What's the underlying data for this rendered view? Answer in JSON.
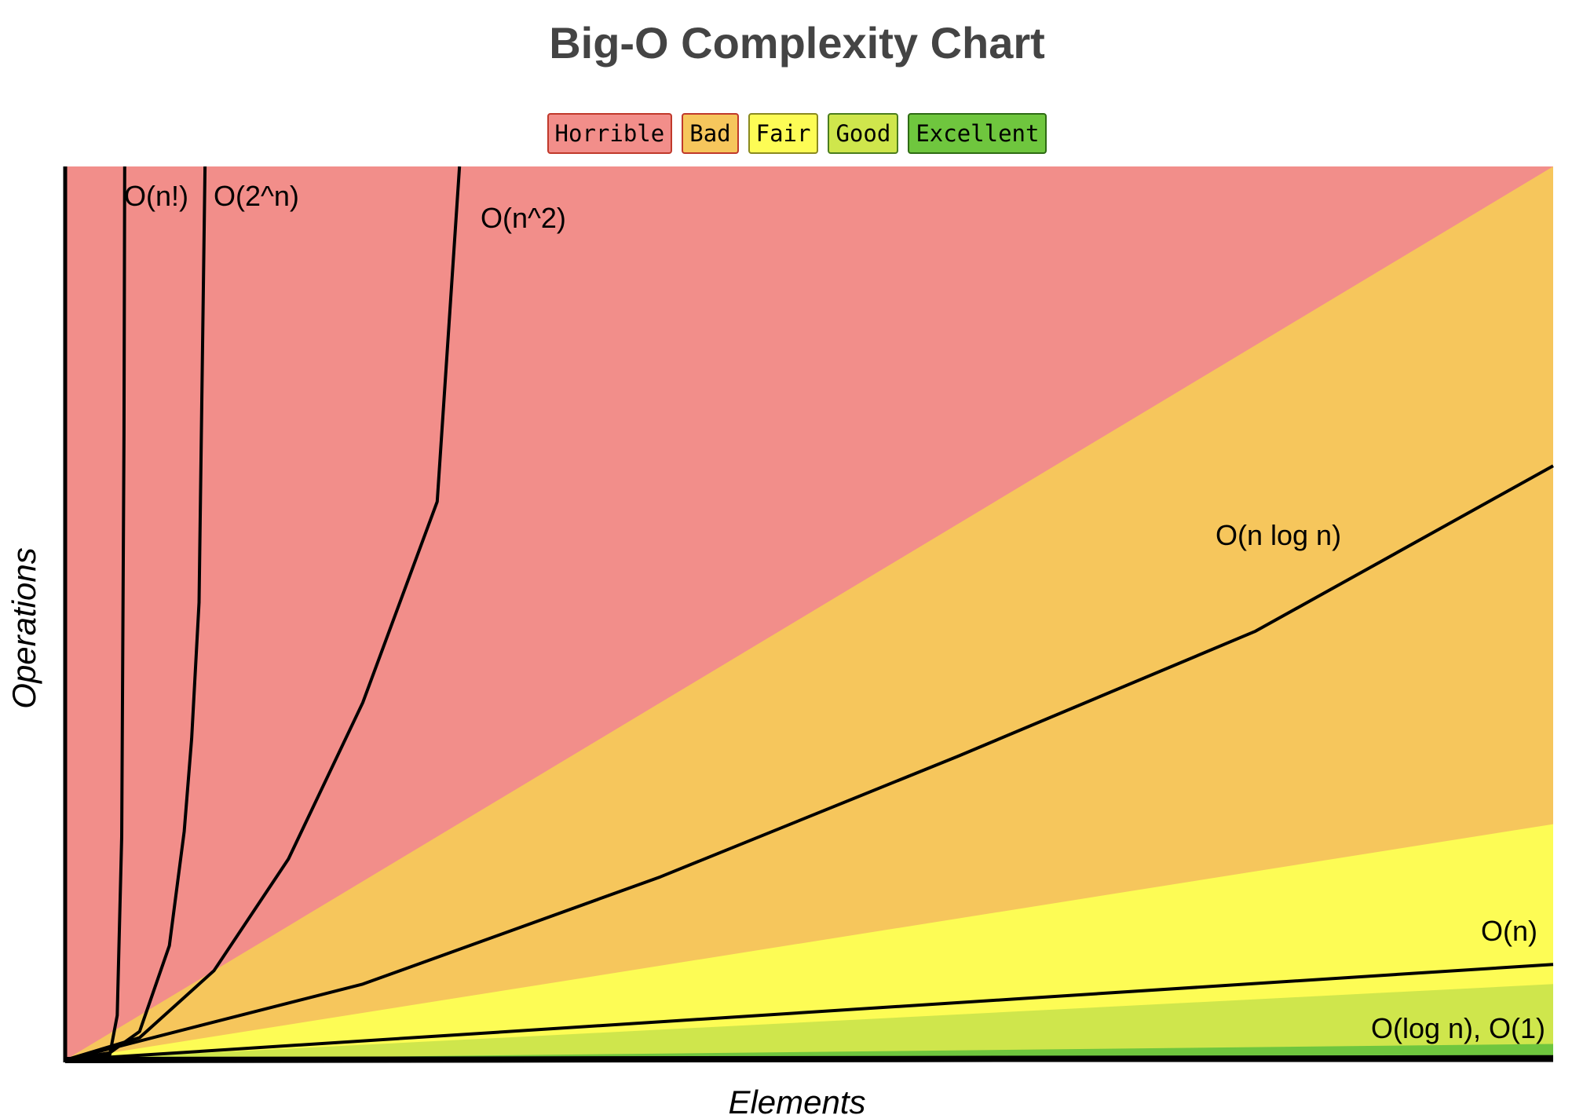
{
  "chart_data": {
    "type": "area",
    "title": "Big-O Complexity Chart",
    "xlabel": "Elements",
    "ylabel": "Operations",
    "xlim": [
      0,
      100
    ],
    "ylim": [
      0,
      1000
    ],
    "grid": false,
    "legend_position": "top-center",
    "legend": [
      {
        "label": "Horrible",
        "color": "#f28e8a",
        "border": "#c0392b"
      },
      {
        "label": "Bad",
        "color": "#f6c65c",
        "border": "#c0392b"
      },
      {
        "label": "Fair",
        "color": "#fdfc55",
        "border": "#8a8a20"
      },
      {
        "label": "Good",
        "color": "#cfe64c",
        "border": "#4b7d1e"
      },
      {
        "label": "Excellent",
        "color": "#6fc63e",
        "border": "#2e6b14"
      }
    ],
    "regions": [
      {
        "name": "Horrible",
        "color": "#f28e8a",
        "upper_y_at_x100": 1000
      },
      {
        "name": "Bad",
        "color": "#f6c65c",
        "upper_y_at_x100": 1000
      },
      {
        "name": "Fair",
        "color": "#fdfc55",
        "upper_y_at_x100": 264
      },
      {
        "name": "Good",
        "color": "#cfe64c",
        "upper_y_at_x100": 85
      },
      {
        "name": "Excellent",
        "color": "#6fc63e",
        "upper_y_at_x100": 18
      }
    ],
    "series": [
      {
        "name": "O(n!)",
        "function": "factorial",
        "x": [
          0,
          1,
          2,
          3,
          3.5,
          3.8,
          3.95,
          4
        ],
        "y": [
          0,
          1,
          2,
          6,
          50,
          250,
          700,
          1000
        ]
      },
      {
        "name": "O(2^n)",
        "function": "exponential",
        "x": [
          0,
          3,
          5,
          7,
          8,
          8.5,
          9,
          9.4
        ],
        "y": [
          0,
          8,
          32,
          128,
          256,
          360,
          512,
          1000
        ]
      },
      {
        "name": "O(n^2)",
        "function": "quadratic",
        "x": [
          0,
          5,
          10,
          15,
          20,
          25,
          26.5
        ],
        "y": [
          0,
          25,
          100,
          225,
          400,
          625,
          1000
        ]
      },
      {
        "name": "O(n log n)",
        "function": "n log n",
        "x": [
          0,
          20,
          40,
          60,
          80,
          100
        ],
        "y": [
          0,
          85,
          205,
          340,
          480,
          665
        ]
      },
      {
        "name": "O(n)",
        "function": "linear",
        "x": [
          0,
          100
        ],
        "y": [
          0,
          107
        ]
      },
      {
        "name": "O(log n), O(1)",
        "function": "log / constant",
        "x": [
          0,
          100
        ],
        "y": [
          0,
          2
        ]
      }
    ]
  }
}
